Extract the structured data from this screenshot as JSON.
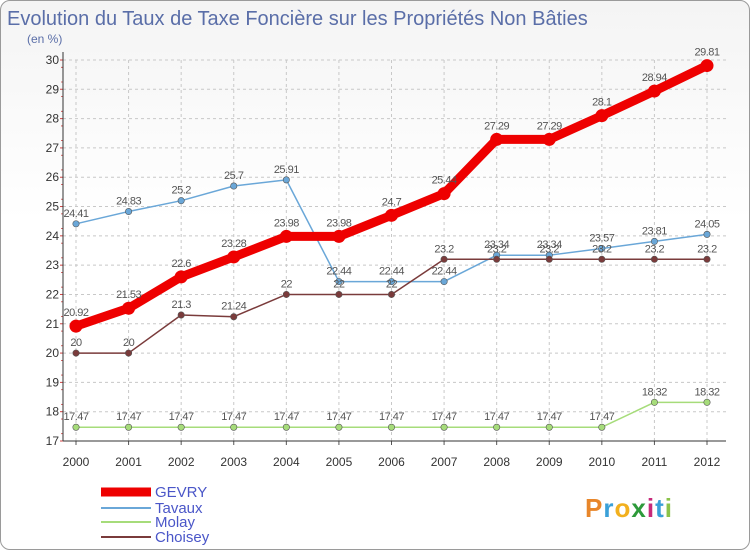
{
  "chart_data": {
    "type": "line",
    "title": "Evolution du Taux de Taxe Foncière sur les Propriétés Non Bâties",
    "subtitle": "(en %)",
    "xlabel": "",
    "ylabel": "",
    "ylim": [
      17,
      30
    ],
    "yticks": [
      "17",
      "18",
      "19",
      "20",
      "21",
      "22",
      "23",
      "24",
      "25",
      "26",
      "27",
      "28",
      "29",
      "30"
    ],
    "categories": [
      "2000",
      "2001",
      "2002",
      "2003",
      "2004",
      "2005",
      "2006",
      "2007",
      "2008",
      "2009",
      "2010",
      "2011",
      "2012"
    ],
    "grid": true,
    "series": [
      {
        "name": "GEVRY",
        "color": "#ee0000",
        "values": [
          20.92,
          21.53,
          22.6,
          23.28,
          23.98,
          23.98,
          24.7,
          25.44,
          27.29,
          27.29,
          28.1,
          28.94,
          29.81
        ],
        "labels": [
          "20.92",
          "21.53",
          "22.6",
          "23.28",
          "23.98",
          "23.98",
          "24.7",
          "25.44",
          "27.29",
          "27.29",
          "28.1",
          "28.94",
          "29.81"
        ]
      },
      {
        "name": "Tavaux",
        "color": "#6aa7d8",
        "values": [
          24.41,
          24.83,
          25.2,
          25.7,
          25.91,
          22.44,
          22.44,
          22.44,
          23.34,
          23.34,
          23.57,
          23.81,
          24.05
        ],
        "labels": [
          "24.41",
          "24.83",
          "25.2",
          "25.7",
          "25.91",
          "22.44",
          "22.44",
          "22.44",
          "23.34",
          "23.34",
          "23.57",
          "23.81",
          "24.05"
        ]
      },
      {
        "name": "Molay",
        "color": "#a6dc7a",
        "values": [
          17.47,
          17.47,
          17.47,
          17.47,
          17.47,
          17.47,
          17.47,
          17.47,
          17.47,
          17.47,
          17.47,
          18.32,
          18.32
        ],
        "labels": [
          "17.47",
          "17.47",
          "17.47",
          "17.47",
          "17.47",
          "17.47",
          "17.47",
          "17.47",
          "17.47",
          "17.47",
          "17.47",
          "18.32",
          "18.32"
        ]
      },
      {
        "name": "Choisey",
        "color": "#7a3b3b",
        "values": [
          20,
          20,
          21.3,
          21.24,
          22,
          22,
          22,
          23.2,
          23.2,
          23.2,
          23.2,
          23.2,
          23.2
        ],
        "labels": [
          "20",
          "20",
          "21.3",
          "21.24",
          "22",
          "22",
          "22",
          "23.2",
          "23.2",
          "23.2",
          "23.2",
          "23.2",
          "23.2"
        ]
      }
    ],
    "legend_position": "bottom-left"
  },
  "logo": {
    "letters": [
      "P",
      "r",
      "o",
      "x",
      "i",
      "t",
      "i"
    ],
    "colors": [
      "#e8862a",
      "#3aa0d8",
      "#f2b01e",
      "#2d9a3a",
      "#c72a7a",
      "#3aa0d8",
      "#8bc34a"
    ]
  }
}
